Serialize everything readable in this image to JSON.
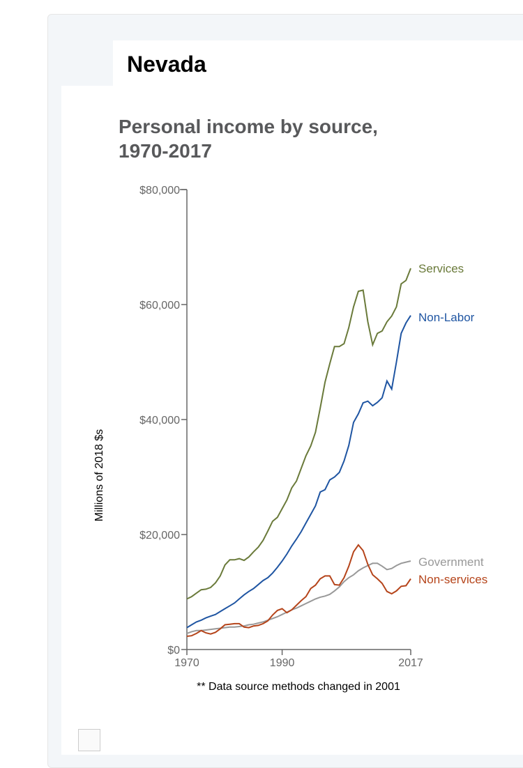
{
  "header": {
    "state": "Nevada"
  },
  "chart_data": {
    "type": "line",
    "title": "Personal income by source, 1970-2017",
    "ylabel": "Millions of 2018 $s",
    "xlabel": "",
    "footnote": "** Data source methods changed in 2001",
    "x_ticks": [
      "1970",
      "1990",
      "2017"
    ],
    "y_ticks": [
      "$0",
      "$20,000",
      "$40,000",
      "$60,000",
      "$80,000"
    ],
    "xlim": [
      1970,
      2017
    ],
    "ylim": [
      0,
      80000
    ],
    "x_start": 1970,
    "series": [
      {
        "name": "Services",
        "color": "#6a7a3a",
        "values": [
          8800,
          9200,
          9800,
          10400,
          10500,
          10800,
          11600,
          12800,
          14700,
          15600,
          15600,
          15800,
          15500,
          16100,
          17000,
          17800,
          19000,
          20600,
          22300,
          23000,
          24500,
          26000,
          28100,
          29300,
          31500,
          33700,
          35400,
          37800,
          42000,
          46500,
          49700,
          52700,
          52700,
          53200,
          56000,
          59600,
          62300,
          62500,
          57000,
          53000,
          55000,
          55400,
          57000,
          58000,
          59600,
          63600,
          64200,
          66300
        ]
      },
      {
        "name": "Non-Labor",
        "color": "#1f55a2",
        "values": [
          3800,
          4300,
          4800,
          5100,
          5500,
          5800,
          6100,
          6600,
          7100,
          7600,
          8100,
          8800,
          9500,
          10100,
          10600,
          11300,
          12000,
          12500,
          13300,
          14300,
          15400,
          16600,
          18000,
          19200,
          20500,
          22000,
          23500,
          25000,
          27400,
          27800,
          29500,
          30000,
          30800,
          32800,
          35500,
          39500,
          41000,
          42900,
          43200,
          42400,
          43000,
          43800,
          46700,
          45300,
          50000,
          55000,
          56800,
          58100
        ]
      },
      {
        "name": "Government",
        "color": "#999999",
        "values": [
          2800,
          3100,
          3300,
          3300,
          3400,
          3500,
          3600,
          3700,
          3800,
          3900,
          3900,
          4000,
          4100,
          4300,
          4400,
          4600,
          4800,
          5100,
          5400,
          5700,
          6100,
          6500,
          6900,
          7200,
          7600,
          8000,
          8400,
          8800,
          9100,
          9300,
          9600,
          10200,
          10900,
          11800,
          12500,
          13000,
          13700,
          14200,
          14600,
          15000,
          15000,
          14500,
          13900,
          14100,
          14600,
          15000,
          15200,
          15400
        ]
      },
      {
        "name": "Non-services",
        "color": "#b5441a",
        "values": [
          2300,
          2400,
          2800,
          3300,
          2900,
          2700,
          3000,
          3600,
          4300,
          4400,
          4500,
          4500,
          3900,
          3800,
          4100,
          4200,
          4500,
          5000,
          6000,
          6800,
          7100,
          6400,
          6900,
          7700,
          8500,
          9200,
          10600,
          11200,
          12300,
          12800,
          12800,
          11300,
          11200,
          12500,
          14500,
          17000,
          18200,
          17200,
          14800,
          13000,
          12300,
          11500,
          10100,
          9700,
          10200,
          11000,
          11100,
          12300
        ]
      }
    ]
  }
}
